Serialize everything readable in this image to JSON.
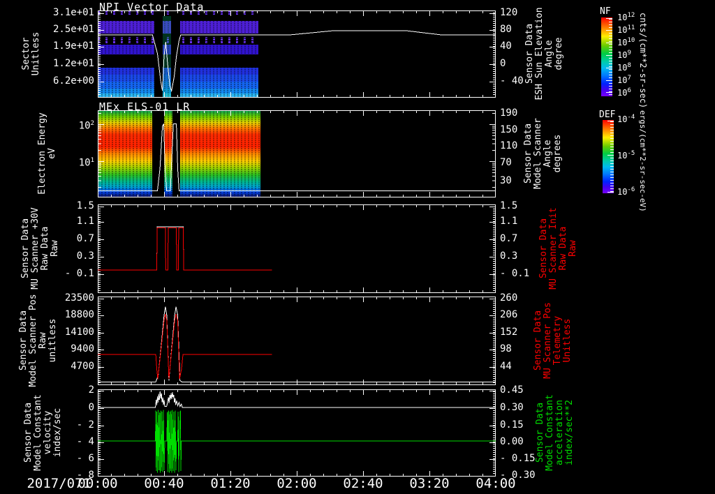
{
  "page": {
    "background": "#000000"
  },
  "titles": {
    "panel1": "NPI Vector Data",
    "panel2": "MEx ELS-01 LR"
  },
  "date_label": "2017/071",
  "time_ticks": [
    "00:00",
    "00:40",
    "01:20",
    "02:00",
    "02:40",
    "03:20",
    "04:00"
  ],
  "panels": [
    {
      "name": "npi-vector-data",
      "left_label": [
        "Sector",
        "Unitless"
      ],
      "left_ticks": [
        "3.1e+01",
        "2.5e+01",
        "1.9e+01",
        "1.2e+01",
        "6.2e+00"
      ],
      "right_label": [
        "Sensor Data",
        "ESH Sun Elevation",
        "Angle",
        "degree"
      ],
      "right_ticks": [
        "120",
        "80",
        "40",
        "0",
        "- 40"
      ],
      "right_label_color": "#ffffff"
    },
    {
      "name": "mex-els-01-lr",
      "left_label": [
        "Electron Energy",
        "eV"
      ],
      "left_ticks_exp": [
        {
          "base": "10",
          "exp": "2"
        },
        {
          "base": "10",
          "exp": "1"
        }
      ],
      "right_label": [
        "Sensor Data",
        "Model Scanner",
        "Angle",
        "degrees"
      ],
      "right_ticks": [
        "190",
        "150",
        "110",
        "70",
        "30"
      ],
      "right_label_color": "#ffffff"
    },
    {
      "name": "mu-scanner-30v",
      "left_label": [
        "Sensor Data",
        "MU Scanner +30V",
        "Raw Data",
        "Raw"
      ],
      "left_ticks": [
        "1.5",
        "1.1",
        "0.7",
        "0.3",
        "- 0.1"
      ],
      "right_label": [
        "Sensor Data",
        "MU Scanner Init",
        "Raw Data",
        "Raw"
      ],
      "right_ticks": [
        "1.5",
        "1.1",
        "0.7",
        "0.3",
        "- 0.1"
      ],
      "right_label_color": "#ff0000"
    },
    {
      "name": "model-scanner-pos",
      "left_label": [
        "Sensor Data",
        "Model Scanner Pos",
        "Raw",
        "unitless"
      ],
      "left_ticks": [
        "23500",
        "18800",
        "14100",
        "9400",
        "4700"
      ],
      "right_label": [
        "Sensor Data",
        "MU Scanner Pos",
        "Telemetry",
        "Unitless"
      ],
      "right_ticks": [
        "260",
        "206",
        "152",
        "98",
        "44"
      ],
      "right_label_color": "#ff0000"
    },
    {
      "name": "model-constant",
      "left_label": [
        "Sensor Data",
        "Model Constant",
        "velocity",
        "index/sec"
      ],
      "left_ticks": [
        "2",
        "0",
        "- 2",
        "- 4",
        "- 6",
        "- 8"
      ],
      "right_label": [
        "Sensor Data",
        "Model Constant",
        "acceleration",
        "index/sec**2"
      ],
      "right_ticks": [
        "0.45",
        "0.30",
        "0.15",
        "0.00",
        "- 0.15",
        "- 0.30"
      ],
      "right_label_color": "#00dd00"
    }
  ],
  "colorbars": [
    {
      "title": "NF",
      "unit": "cnts/(cm**2-sr-sec)",
      "ticks": [
        {
          "base": "10",
          "exp": "12"
        },
        {
          "base": "10",
          "exp": "11"
        },
        {
          "base": "10",
          "exp": "10"
        },
        {
          "base": "10",
          "exp": "9"
        },
        {
          "base": "10",
          "exp": "8"
        },
        {
          "base": "10",
          "exp": "7"
        },
        {
          "base": "10",
          "exp": "6"
        }
      ]
    },
    {
      "title": "DEF",
      "unit": "ergs/(cm**2-sr-sec-eV)",
      "ticks": [
        {
          "base": "10",
          "exp": "-4"
        },
        {
          "base": "10",
          "exp": "-5"
        },
        {
          "base": "10",
          "exp": "-6"
        }
      ]
    }
  ],
  "chart_data": [
    {
      "type": "heatmap",
      "title": "NPI Vector Data",
      "ylabel": "Sector (Unitless)",
      "y_ticks": [
        31,
        25,
        19,
        12,
        6.2
      ],
      "x_range": [
        "00:00",
        "04:00"
      ],
      "date": "2017/071",
      "colorbar": {
        "name": "NF",
        "unit": "cnts/(cm**2-sr-sec)",
        "range_exp": [
          6,
          12
        ]
      },
      "coverage_minutes": [
        [
          0,
          34
        ],
        [
          39,
          44
        ],
        [
          50,
          97
        ]
      ],
      "series": [
        {
          "name": "ESH Sun Elevation Angle",
          "unit": "degree",
          "color": "#ffffff",
          "ylim": [
            -77,
            124.8
          ],
          "points": [
            [
              0,
              68
            ],
            [
              33,
              68
            ],
            [
              36,
              25
            ],
            [
              38,
              -40
            ],
            [
              39,
              -61
            ],
            [
              40,
              20
            ],
            [
              41,
              52
            ],
            [
              42,
              5
            ],
            [
              43.5,
              -50
            ],
            [
              44.5,
              -61
            ],
            [
              46,
              -30
            ],
            [
              47.5,
              20
            ],
            [
              49,
              55
            ],
            [
              50,
              68
            ],
            [
              115,
              68
            ],
            [
              142,
              78
            ],
            [
              186,
              78
            ],
            [
              208,
              68
            ],
            [
              240,
              68
            ]
          ]
        }
      ]
    },
    {
      "type": "heatmap",
      "title": "MEx ELS-01 LR",
      "ylabel": "Electron Energy (eV)",
      "y_scale": "log",
      "y_ticks": [
        100,
        10
      ],
      "x_range": [
        "00:00",
        "04:00"
      ],
      "colorbar": {
        "name": "DEF",
        "unit": "ergs/(cm**2-sr-sec-eV)",
        "range_exp": [
          -6,
          -4
        ]
      },
      "coverage_minutes": [
        [
          0,
          33
        ],
        [
          40,
          45
        ],
        [
          50,
          98
        ]
      ],
      "series": [
        {
          "name": "Model Scanner Angle",
          "unit": "degrees",
          "color": "#ffffff",
          "ylim": [
            -8,
            198
          ],
          "points": [
            [
              0,
              8
            ],
            [
              36,
              8
            ],
            [
              37.5,
              60
            ],
            [
              39,
              160
            ],
            [
              39.8,
              166
            ],
            [
              40.6,
              60
            ],
            [
              41.5,
              8
            ],
            [
              43.8,
              8
            ],
            [
              44.8,
              100
            ],
            [
              45.6,
              166
            ],
            [
              47.4,
              166
            ],
            [
              48.2,
              60
            ],
            [
              49,
              8
            ],
            [
              240,
              8
            ]
          ]
        }
      ]
    },
    {
      "type": "line",
      "ylabel": "MU Scanner +30V Raw Data Raw",
      "ylim_ticks": [
        1.5,
        1.1,
        0.7,
        0.3,
        -0.1
      ],
      "series": [
        {
          "name": "MU Scanner Init Raw Data (white)",
          "color": "#ffffff",
          "ylim": [
            -0.54,
            1.55
          ],
          "points": [
            [
              35.6,
              0
            ],
            [
              35.8,
              1.02
            ],
            [
              51.6,
              1.02
            ],
            [
              51.8,
              0
            ]
          ]
        },
        {
          "name": "MU Scanner +30V Raw",
          "color": "#ff0000",
          "ylim": [
            -0.54,
            1.55
          ],
          "points": [
            [
              0,
              0
            ],
            [
              35.6,
              0
            ],
            [
              35.8,
              1
            ],
            [
              40.8,
              1
            ],
            [
              41,
              0
            ],
            [
              42.3,
              0
            ],
            [
              42.5,
              1
            ],
            [
              47.4,
              1
            ],
            [
              47.6,
              0
            ],
            [
              48.6,
              0
            ],
            [
              48.8,
              1
            ],
            [
              51.6,
              1
            ],
            [
              51.8,
              0
            ],
            [
              105,
              0
            ]
          ]
        }
      ]
    },
    {
      "type": "line",
      "ylabel": "Model Scanner Pos Raw (unitless)",
      "ylim_ticks": [
        23500,
        18800,
        14100,
        9400,
        4700
      ],
      "right_ticks": [
        260,
        206,
        152,
        98,
        44
      ],
      "series": [
        {
          "name": "MU Scanner Pos Telemetry (white)",
          "color": "#ffffff",
          "ylim": [
            -289,
            24075
          ],
          "points": [
            [
              0,
              600
            ],
            [
              35,
              600
            ],
            [
              36.5,
              2500
            ],
            [
              38,
              9500
            ],
            [
              40,
              19000
            ],
            [
              40.8,
              21300
            ],
            [
              41.6,
              19000
            ],
            [
              42.9,
              1000
            ],
            [
              44.5,
              9500
            ],
            [
              46.4,
              19000
            ],
            [
              47.2,
              21300
            ],
            [
              48.2,
              19000
            ],
            [
              49.5,
              1000
            ],
            [
              50.8,
              600
            ],
            [
              240,
              600
            ]
          ]
        },
        {
          "name": "Model Scanner Pos Raw",
          "color": "#ff0000",
          "ylim": [
            -289,
            24075
          ],
          "points": [
            [
              0,
              8200
            ],
            [
              35,
              8200
            ],
            [
              35.6,
              4000
            ],
            [
              36.2,
              1400
            ],
            [
              38,
              9000
            ],
            [
              40,
              17500
            ],
            [
              40.8,
              19300
            ],
            [
              41.6,
              17500
            ],
            [
              42.9,
              1400
            ],
            [
              44.5,
              9000
            ],
            [
              46.4,
              17500
            ],
            [
              47.2,
              19300
            ],
            [
              48.2,
              17500
            ],
            [
              49.3,
              1400
            ],
            [
              50.5,
              4000
            ],
            [
              51.4,
              8200
            ],
            [
              105,
              8200
            ]
          ]
        }
      ]
    },
    {
      "type": "line",
      "ylabel": "Model Constant velocity (index/sec)",
      "ylim_ticks": [
        2,
        0,
        -2,
        -4,
        -6,
        -8
      ],
      "right_ticks": [
        0.45,
        0.3,
        0.15,
        0.0,
        -0.15,
        -0.3
      ],
      "series": [
        {
          "name": "Model Constant velocity (white)",
          "color": "#ffffff",
          "ylim": [
            -8.25,
            2.16
          ],
          "points": [
            [
              0,
              0
            ],
            [
              34.8,
              0
            ],
            [
              35.2,
              0.9
            ],
            [
              35.6,
              0.3
            ],
            [
              36,
              1.3
            ],
            [
              36.4,
              0.6
            ],
            [
              36.8,
              1.6
            ],
            [
              37.2,
              0.9
            ],
            [
              37.6,
              1.9
            ],
            [
              38,
              1.1
            ],
            [
              38.4,
              1.7
            ],
            [
              38.8,
              0.6
            ],
            [
              39.2,
              1.2
            ],
            [
              39.6,
              0.3
            ],
            [
              40,
              0.9
            ],
            [
              40.4,
              0.1
            ],
            [
              41.5,
              0.1
            ],
            [
              42.2,
              0.7
            ],
            [
              42.6,
              1.2
            ],
            [
              43,
              0.5
            ],
            [
              43.4,
              1.5
            ],
            [
              43.8,
              0.9
            ],
            [
              44.2,
              1.7
            ],
            [
              44.6,
              1.0
            ],
            [
              45,
              1.8
            ],
            [
              45.4,
              1.2
            ],
            [
              45.8,
              1.5
            ],
            [
              46.2,
              0.6
            ],
            [
              46.6,
              1.1
            ],
            [
              47,
              0.3
            ],
            [
              47.6,
              0.8
            ],
            [
              48.2,
              0.2
            ],
            [
              49,
              0.6
            ],
            [
              49.6,
              0.1
            ],
            [
              50.4,
              0.4
            ],
            [
              51,
              0
            ],
            [
              240,
              0
            ]
          ]
        },
        {
          "name": "Model Constant acceleration (green)",
          "color": "#00dd00",
          "ylim": [
            -8.25,
            2.16
          ],
          "points": [
            [
              0,
              -4
            ],
            [
              34.8,
              -4
            ],
            [
              35,
              -0.4
            ],
            [
              35.3,
              -7.6
            ],
            [
              35.6,
              -0.5
            ],
            [
              36,
              -7.8
            ],
            [
              36.4,
              -0.3
            ],
            [
              36.8,
              -7.5
            ],
            [
              37.2,
              -0.6
            ],
            [
              37.6,
              -7.8
            ],
            [
              38,
              -0.4
            ],
            [
              38.4,
              -7.6
            ],
            [
              38.8,
              -0.5
            ],
            [
              39.2,
              -7.7
            ],
            [
              39.6,
              -0.3
            ],
            [
              40,
              -7.5
            ],
            [
              40.4,
              -4
            ],
            [
              41.6,
              -4
            ],
            [
              42,
              -0.5
            ],
            [
              42.3,
              -7.7
            ],
            [
              42.7,
              -0.4
            ],
            [
              43.1,
              -7.8
            ],
            [
              43.5,
              -0.5
            ],
            [
              43.9,
              -7.6
            ],
            [
              44.3,
              -0.4
            ],
            [
              44.7,
              -7.8
            ],
            [
              45.1,
              -0.3
            ],
            [
              45.5,
              -7.6
            ],
            [
              45.9,
              -0.5
            ],
            [
              46.3,
              -7.8
            ],
            [
              46.7,
              -0.4
            ],
            [
              47.1,
              -7.5
            ],
            [
              47.5,
              -4
            ],
            [
              48.2,
              -4
            ],
            [
              48.5,
              -0.5
            ],
            [
              48.8,
              -7.7
            ],
            [
              49.1,
              -4
            ],
            [
              49.8,
              -0.4
            ],
            [
              50.1,
              -7.6
            ],
            [
              50.4,
              -4
            ],
            [
              240,
              -4
            ]
          ]
        }
      ]
    }
  ]
}
